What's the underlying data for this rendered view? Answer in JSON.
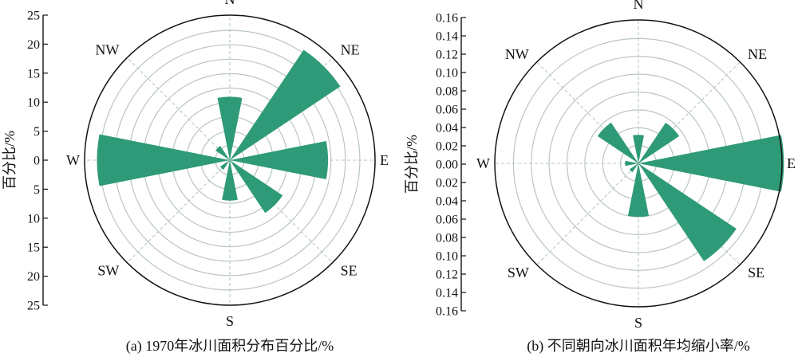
{
  "chart_data": [
    {
      "type": "polar-bar",
      "caption": "(a) 1970年冰川面积分布百分比/%",
      "ylabel": "百分比/%",
      "directions": [
        "N",
        "NE",
        "E",
        "SE",
        "S",
        "SW",
        "W",
        "NW"
      ],
      "values": [
        11,
        23,
        17,
        11,
        7,
        2,
        23,
        3
      ],
      "ylim": [
        0,
        25
      ],
      "yticks": [
        25,
        20,
        15,
        10,
        5,
        0,
        5,
        10,
        15,
        20,
        25
      ],
      "ring_step": 2.5,
      "grid": true
    },
    {
      "type": "polar-bar",
      "caption": "(b) 不同朝向冰川面积年均缩小率/%",
      "ylabel": "百分比/%",
      "directions": [
        "N",
        "NE",
        "E",
        "SE",
        "S",
        "SW",
        "W",
        "NW"
      ],
      "values": [
        0.032,
        0.055,
        0.163,
        0.132,
        0.06,
        0.012,
        0.015,
        0.055
      ],
      "ylim": [
        0,
        0.16
      ],
      "yticks": [
        "0.16",
        "0.14",
        "0.12",
        "0.10",
        "0.08",
        "0.06",
        "0.04",
        "0.02",
        "0.00",
        "0.02",
        "0.04",
        "0.06",
        "0.08",
        "0.10",
        "0.12",
        "0.14",
        "0.16"
      ],
      "ring_step": 0.02,
      "grid": true
    }
  ],
  "colors": {
    "bar": "#2e9a78",
    "grid": "#b9c6c2",
    "axis": "#111111"
  }
}
